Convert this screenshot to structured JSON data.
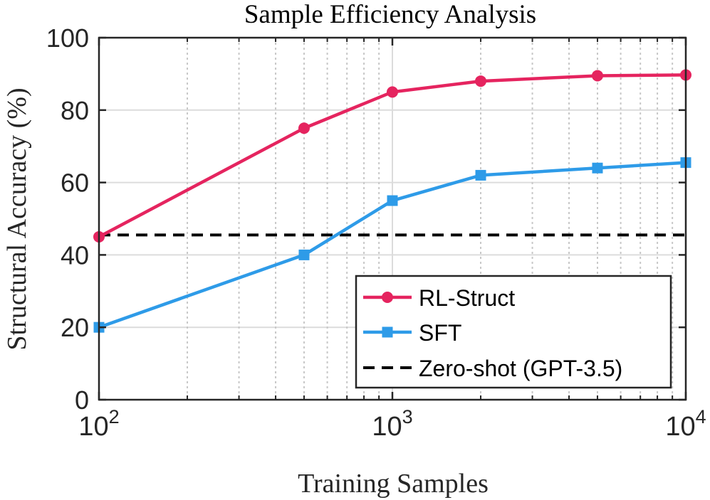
{
  "chart_data": {
    "type": "line",
    "title": "Sample Efficiency Analysis",
    "xlabel": "Training Samples",
    "ylabel": "Structural Accuracy (%)",
    "xscale": "log",
    "xlim": [
      100,
      10000
    ],
    "ylim": [
      0,
      100
    ],
    "xticks": [
      {
        "value": 100,
        "base": "10",
        "exp": "2"
      },
      {
        "value": 1000,
        "base": "10",
        "exp": "3"
      },
      {
        "value": 10000,
        "base": "10",
        "exp": "4"
      }
    ],
    "yticks": [
      {
        "value": 0,
        "label": "0"
      },
      {
        "value": 20,
        "label": "20"
      },
      {
        "value": 40,
        "label": "40"
      },
      {
        "value": 60,
        "label": "60"
      },
      {
        "value": 80,
        "label": "80"
      },
      {
        "value": 100,
        "label": "100"
      }
    ],
    "series": [
      {
        "name": "RL-Struct",
        "color": "#e5245f",
        "marker": "circle",
        "x": [
          100,
          500,
          1000,
          2000,
          5000,
          10000
        ],
        "y": [
          45,
          75,
          85,
          88,
          89.5,
          89.7
        ]
      },
      {
        "name": "SFT",
        "color": "#2e9be8",
        "marker": "square",
        "x": [
          100,
          500,
          1000,
          2000,
          5000,
          10000
        ],
        "y": [
          20,
          40,
          55,
          62,
          64,
          65.5
        ]
      }
    ],
    "reference_lines": [
      {
        "name": "Zero-shot (GPT-3.5)",
        "y": 45.5,
        "color": "#000000",
        "style": "dashed"
      }
    ],
    "grid": true,
    "legend_position": "bottom-right"
  }
}
